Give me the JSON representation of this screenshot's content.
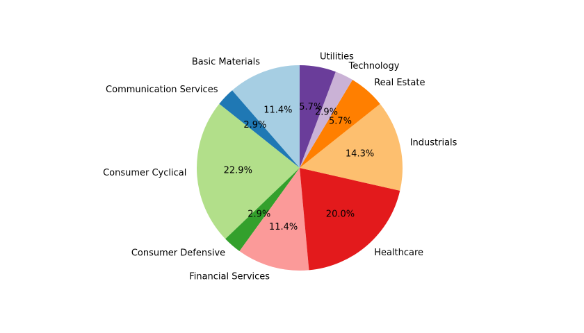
{
  "chart_data": {
    "type": "pie",
    "start_angle_deg": 90,
    "direction": "counterclockwise",
    "slices": [
      {
        "label": "Basic Materials",
        "value": 11.4,
        "pct_label": "11.4%",
        "color": "#a6cee3"
      },
      {
        "label": "Communication Services",
        "value": 2.9,
        "pct_label": "2.9%",
        "color": "#1f78b4"
      },
      {
        "label": "Consumer Cyclical",
        "value": 22.9,
        "pct_label": "22.9%",
        "color": "#b2df8a"
      },
      {
        "label": "Consumer Defensive",
        "value": 2.9,
        "pct_label": "2.9%",
        "color": "#33a02c"
      },
      {
        "label": "Financial Services",
        "value": 11.4,
        "pct_label": "11.4%",
        "color": "#fb9a99"
      },
      {
        "label": "Healthcare",
        "value": 20.0,
        "pct_label": "20.0%",
        "color": "#e31a1c"
      },
      {
        "label": "Industrials",
        "value": 14.3,
        "pct_label": "14.3%",
        "color": "#fdbf6f"
      },
      {
        "label": "Real Estate",
        "value": 5.7,
        "pct_label": "5.7%",
        "color": "#ff7f00"
      },
      {
        "label": "Technology",
        "value": 2.9,
        "pct_label": "2.9%",
        "color": "#cab2d6"
      },
      {
        "label": "Utilities",
        "value": 5.7,
        "pct_label": "5.7%",
        "color": "#6a3d9a"
      }
    ]
  }
}
